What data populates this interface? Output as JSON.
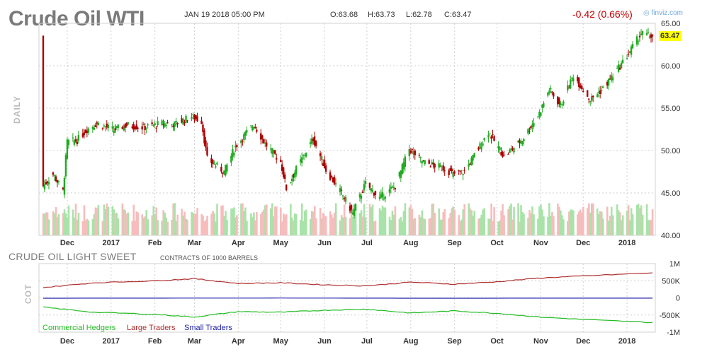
{
  "header": {
    "title": "Crude Oil WTI",
    "date": "JAN 19 2018 05:00 PM",
    "open": "O:63.68",
    "high": "H:63.73",
    "low": "L:62.78",
    "close": "C:63.47",
    "change": "-0.42 (0.66%)",
    "brand": "finviz.com",
    "last_price": "63.47"
  },
  "price_panel_label": "DAILY",
  "cot_panel": {
    "title": "CRUDE OIL LIGHT SWEET",
    "subtitle": "CONTRACTS OF 1000 BARRELS",
    "label": "COT",
    "legend": [
      "Commercial Hedgers",
      "Large Traders",
      "Small Traders"
    ]
  },
  "colors": {
    "up": "#22aa22",
    "down": "#aa0000",
    "volume_up": "#a9e3a9",
    "volume_down": "#f7bcbc",
    "commercial": "#22bb22",
    "large": "#b03030",
    "small": "#2222aa",
    "price_badge": "#ffff00"
  },
  "chart_data": [
    {
      "type": "candlestick",
      "title": "Crude Oil WTI",
      "ylabel": "DAILY",
      "ylim": [
        40,
        65
      ],
      "yticks": [
        "65.00",
        "60.00",
        "55.00",
        "50.00",
        "45.00",
        "40.00"
      ],
      "xticks": [
        "Dec",
        "2017",
        "Feb",
        "Mar",
        "Apr",
        "May",
        "Jun",
        "Jul",
        "Aug",
        "Sep",
        "Oct",
        "Nov",
        "Dec",
        "2018"
      ],
      "close_path": [
        {
          "date": "2016-11-14",
          "close": 45.8
        },
        {
          "date": "2016-11-21",
          "close": 47.2
        },
        {
          "date": "2016-11-28",
          "close": 45.2
        },
        {
          "date": "2016-12-01",
          "close": 51.0
        },
        {
          "date": "2016-12-08",
          "close": 51.2
        },
        {
          "date": "2016-12-15",
          "close": 52.5
        },
        {
          "date": "2016-12-22",
          "close": 53.2
        },
        {
          "date": "2017-01-03",
          "close": 52.4
        },
        {
          "date": "2017-01-12",
          "close": 53.0
        },
        {
          "date": "2017-01-24",
          "close": 52.7
        },
        {
          "date": "2017-02-06",
          "close": 53.2
        },
        {
          "date": "2017-02-15",
          "close": 53.1
        },
        {
          "date": "2017-02-27",
          "close": 54.0
        },
        {
          "date": "2017-03-06",
          "close": 53.5
        },
        {
          "date": "2017-03-10",
          "close": 49.0
        },
        {
          "date": "2017-03-22",
          "close": 47.5
        },
        {
          "date": "2017-03-30",
          "close": 50.5
        },
        {
          "date": "2017-04-12",
          "close": 53.1
        },
        {
          "date": "2017-04-20",
          "close": 50.8
        },
        {
          "date": "2017-05-01",
          "close": 48.7
        },
        {
          "date": "2017-05-05",
          "close": 45.5
        },
        {
          "date": "2017-05-12",
          "close": 47.8
        },
        {
          "date": "2017-05-24",
          "close": 51.4
        },
        {
          "date": "2017-06-02",
          "close": 47.7
        },
        {
          "date": "2017-06-14",
          "close": 44.7
        },
        {
          "date": "2017-06-21",
          "close": 42.6
        },
        {
          "date": "2017-06-30",
          "close": 46.1
        },
        {
          "date": "2017-07-10",
          "close": 44.4
        },
        {
          "date": "2017-07-21",
          "close": 45.8
        },
        {
          "date": "2017-07-31",
          "close": 50.2
        },
        {
          "date": "2017-08-10",
          "close": 48.6
        },
        {
          "date": "2017-08-25",
          "close": 47.9
        },
        {
          "date": "2017-08-31",
          "close": 47.2
        },
        {
          "date": "2017-09-08",
          "close": 47.5
        },
        {
          "date": "2017-09-25",
          "close": 52.2
        },
        {
          "date": "2017-10-06",
          "close": 49.3
        },
        {
          "date": "2017-10-19",
          "close": 51.3
        },
        {
          "date": "2017-10-31",
          "close": 54.4
        },
        {
          "date": "2017-11-07",
          "close": 57.2
        },
        {
          "date": "2017-11-15",
          "close": 55.3
        },
        {
          "date": "2017-11-24",
          "close": 58.9
        },
        {
          "date": "2017-12-06",
          "close": 56.0
        },
        {
          "date": "2017-12-15",
          "close": 57.3
        },
        {
          "date": "2017-12-29",
          "close": 60.4
        },
        {
          "date": "2018-01-11",
          "close": 63.8
        },
        {
          "date": "2018-01-19",
          "close": 63.47
        }
      ]
    },
    {
      "type": "line",
      "title": "CRUDE OIL LIGHT SWEET",
      "subtitle": "CONTRACTS OF 1000 BARRELS",
      "ylabel": "COT",
      "ylim": [
        -1000000,
        1000000
      ],
      "yticks": [
        "1M",
        "500K",
        "0",
        "-500K",
        "-1M"
      ],
      "xticks": [
        "Dec",
        "2017",
        "Feb",
        "Mar",
        "Apr",
        "May",
        "Jun",
        "Jul",
        "Aug",
        "Sep",
        "Oct",
        "Nov",
        "Dec",
        "2018"
      ],
      "series": [
        {
          "name": "Commercial Hedgers",
          "points": [
            {
              "date": "2016-11-14",
              "value": -270000
            },
            {
              "date": "2016-12-20",
              "value": -420000
            },
            {
              "date": "2017-02-01",
              "value": -480000
            },
            {
              "date": "2017-03-01",
              "value": -560000
            },
            {
              "date": "2017-04-01",
              "value": -400000
            },
            {
              "date": "2017-05-01",
              "value": -420000
            },
            {
              "date": "2017-06-01",
              "value": -360000
            },
            {
              "date": "2017-07-01",
              "value": -330000
            },
            {
              "date": "2017-08-01",
              "value": -440000
            },
            {
              "date": "2017-09-01",
              "value": -380000
            },
            {
              "date": "2017-10-01",
              "value": -450000
            },
            {
              "date": "2017-11-01",
              "value": -560000
            },
            {
              "date": "2017-12-01",
              "value": -630000
            },
            {
              "date": "2018-01-19",
              "value": -720000
            }
          ]
        },
        {
          "name": "Large Traders",
          "points": [
            {
              "date": "2016-11-14",
              "value": 300000
            },
            {
              "date": "2016-12-20",
              "value": 440000
            },
            {
              "date": "2017-02-01",
              "value": 500000
            },
            {
              "date": "2017-03-01",
              "value": 560000
            },
            {
              "date": "2017-04-01",
              "value": 420000
            },
            {
              "date": "2017-05-01",
              "value": 440000
            },
            {
              "date": "2017-06-01",
              "value": 380000
            },
            {
              "date": "2017-07-01",
              "value": 350000
            },
            {
              "date": "2017-08-01",
              "value": 460000
            },
            {
              "date": "2017-09-01",
              "value": 400000
            },
            {
              "date": "2017-10-01",
              "value": 470000
            },
            {
              "date": "2017-11-01",
              "value": 580000
            },
            {
              "date": "2017-12-01",
              "value": 640000
            },
            {
              "date": "2018-01-19",
              "value": 730000
            }
          ]
        },
        {
          "name": "Small Traders",
          "points": [
            {
              "date": "2016-11-14",
              "value": -10000
            },
            {
              "date": "2017-05-01",
              "value": -5000
            },
            {
              "date": "2017-08-01",
              "value": -10000
            },
            {
              "date": "2018-01-19",
              "value": -8000
            }
          ]
        }
      ]
    }
  ]
}
